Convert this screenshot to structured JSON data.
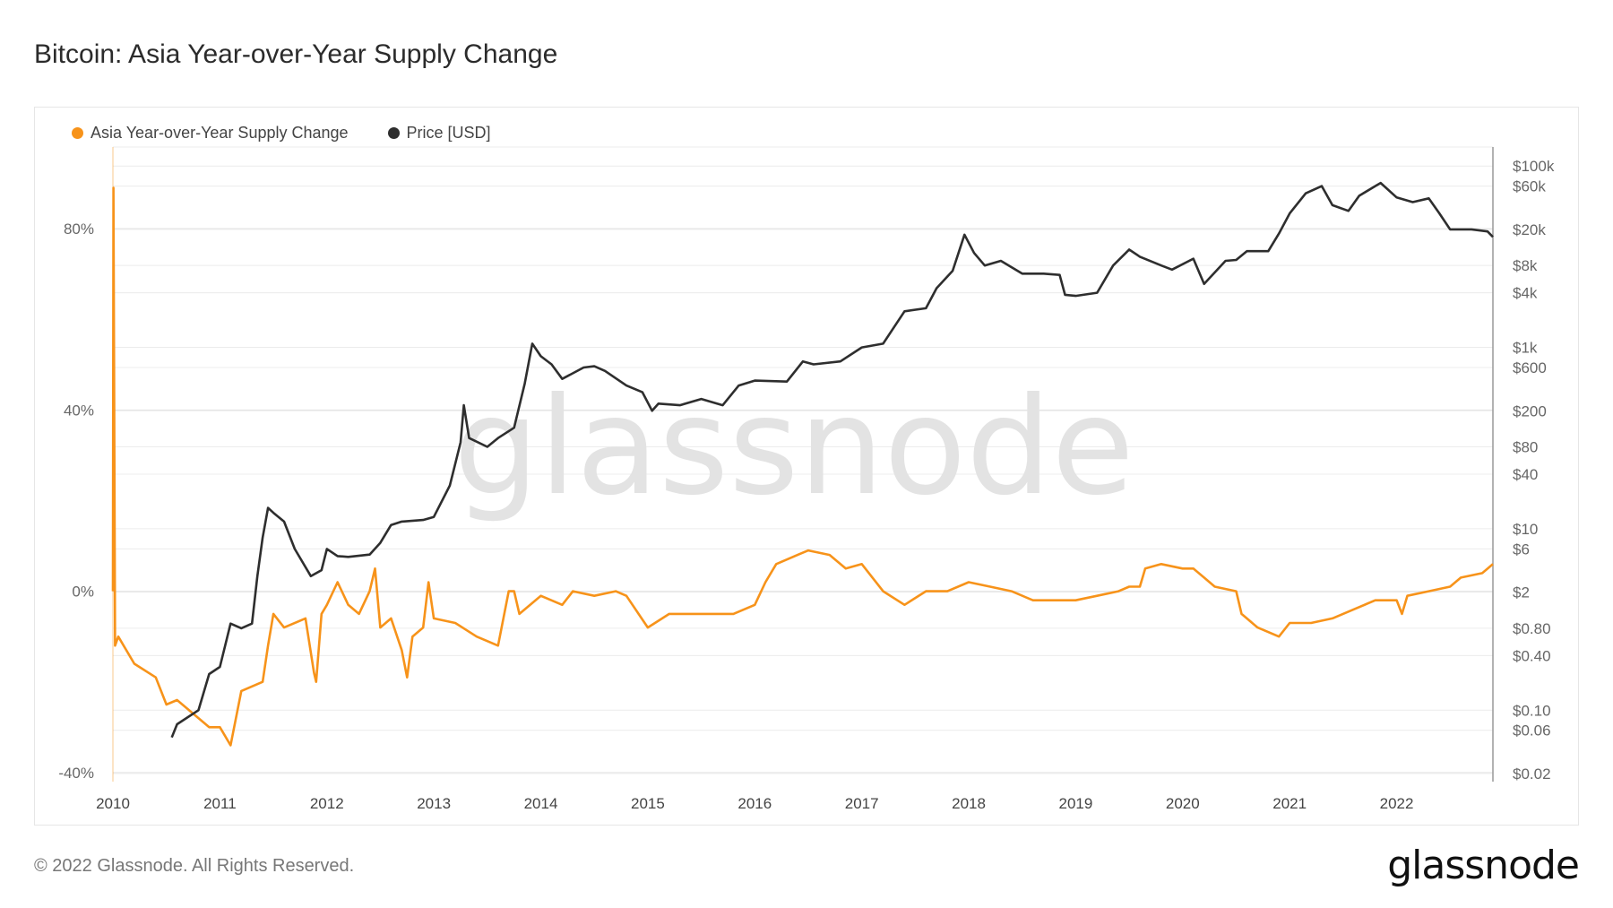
{
  "title": "Bitcoin: Asia Year-over-Year Supply Change",
  "footer": "© 2022 Glassnode. All Rights Reserved.",
  "logo": "glassnode",
  "watermark": "glassnode",
  "chart_data": {
    "type": "line",
    "title": "Bitcoin: Asia Year-over-Year Supply Change",
    "legend_position": "top-left",
    "grid": true,
    "x_ticks": [
      "2010",
      "2011",
      "2012",
      "2013",
      "2014",
      "2015",
      "2016",
      "2017",
      "2018",
      "2019",
      "2020",
      "2021",
      "2022"
    ],
    "xlim": [
      2010.0,
      2022.9
    ],
    "y_left": {
      "ticks": [
        "80%",
        "40%",
        "0%",
        "-40%"
      ],
      "tick_values": [
        80,
        40,
        0,
        -40
      ],
      "range": [
        -42,
        98
      ],
      "scale": "linear"
    },
    "y_right": {
      "ticks": [
        "$100k",
        "$60k",
        "$20k",
        "$8k",
        "$4k",
        "$1k",
        "$600",
        "$200",
        "$80",
        "$40",
        "$10",
        "$6",
        "$2",
        "$0.80",
        "$0.40",
        "$0.10",
        "$0.06",
        "$0.02"
      ],
      "tick_values": [
        100000,
        60000,
        20000,
        8000,
        4000,
        1000,
        600,
        200,
        80,
        40,
        10,
        6,
        2,
        0.8,
        0.4,
        0.1,
        0.06,
        0.02
      ],
      "range": [
        0.0163,
        162000
      ],
      "scale": "log"
    },
    "series": [
      {
        "name": "Asia Year-over-Year Supply Change",
        "axis": "left",
        "color": "#f7931a",
        "x": [
          2010.0,
          2010.005,
          2010.02,
          2010.05,
          2010.2,
          2010.4,
          2010.5,
          2010.6,
          2010.75,
          2010.9,
          2011.0,
          2011.1,
          2011.2,
          2011.4,
          2011.45,
          2011.5,
          2011.6,
          2011.8,
          2011.88,
          2011.9,
          2011.95,
          2012.0,
          2012.1,
          2012.2,
          2012.3,
          2012.4,
          2012.45,
          2012.5,
          2012.6,
          2012.7,
          2012.75,
          2012.8,
          2012.9,
          2012.95,
          2013.0,
          2013.2,
          2013.4,
          2013.6,
          2013.7,
          2013.75,
          2013.8,
          2014.0,
          2014.2,
          2014.3,
          2014.5,
          2014.7,
          2014.8,
          2015.0,
          2015.2,
          2015.5,
          2015.8,
          2016.0,
          2016.1,
          2016.2,
          2016.4,
          2016.5,
          2016.7,
          2016.85,
          2017.0,
          2017.2,
          2017.4,
          2017.6,
          2017.8,
          2018.0,
          2018.2,
          2018.4,
          2018.6,
          2018.8,
          2019.0,
          2019.2,
          2019.4,
          2019.5,
          2019.6,
          2019.65,
          2019.8,
          2020.0,
          2020.1,
          2020.2,
          2020.3,
          2020.5,
          2020.55,
          2020.7,
          2020.9,
          2021.0,
          2021.2,
          2021.4,
          2021.6,
          2021.8,
          2022.0,
          2022.05,
          2022.1,
          2022.3,
          2022.5,
          2022.6,
          2022.8,
          2022.9
        ],
        "y": [
          0,
          89,
          -12,
          -10,
          -16,
          -19,
          -25,
          -24,
          -27,
          -30,
          -30,
          -34,
          -22,
          -20,
          -12,
          -5,
          -8,
          -6,
          -18,
          -20,
          -5,
          -3,
          2,
          -3,
          -5,
          0,
          5,
          -8,
          -6,
          -13,
          -19,
          -10,
          -8,
          2,
          -6,
          -7,
          -10,
          -12,
          0,
          0,
          -5,
          -1,
          -3,
          0,
          -1,
          0,
          -1,
          -8,
          -5,
          -5,
          -5,
          -3,
          2,
          6,
          8,
          9,
          8,
          5,
          6,
          0,
          -3,
          0,
          0,
          2,
          1,
          0,
          -2,
          -2,
          -2,
          -1,
          0,
          1,
          1,
          5,
          6,
          5,
          5,
          3,
          1,
          0,
          -5,
          -8,
          -10,
          -7,
          -7,
          -6,
          -4,
          -2,
          -2,
          -5,
          -1,
          0,
          1,
          3,
          4,
          6
        ]
      },
      {
        "name": "Price [USD]",
        "axis": "right",
        "color": "#2e2e2e",
        "x": [
          2010.55,
          2010.6,
          2010.8,
          2010.9,
          2011.0,
          2011.1,
          2011.2,
          2011.3,
          2011.35,
          2011.4,
          2011.45,
          2011.5,
          2011.6,
          2011.7,
          2011.85,
          2011.95,
          2012.0,
          2012.1,
          2012.2,
          2012.4,
          2012.5,
          2012.6,
          2012.7,
          2012.9,
          2013.0,
          2013.15,
          2013.25,
          2013.28,
          2013.33,
          2013.5,
          2013.6,
          2013.75,
          2013.85,
          2013.92,
          2014.0,
          2014.1,
          2014.2,
          2014.4,
          2014.5,
          2014.6,
          2014.8,
          2014.95,
          2015.04,
          2015.1,
          2015.3,
          2015.5,
          2015.7,
          2015.85,
          2016.0,
          2016.3,
          2016.45,
          2016.55,
          2016.8,
          2017.0,
          2017.2,
          2017.4,
          2017.6,
          2017.7,
          2017.85,
          2017.96,
          2018.05,
          2018.15,
          2018.3,
          2018.5,
          2018.7,
          2018.85,
          2018.9,
          2019.0,
          2019.2,
          2019.35,
          2019.5,
          2019.6,
          2019.8,
          2019.9,
          2020.1,
          2020.2,
          2020.4,
          2020.5,
          2020.6,
          2020.8,
          2020.9,
          2021.0,
          2021.15,
          2021.3,
          2021.4,
          2021.55,
          2021.65,
          2021.8,
          2021.85,
          2022.0,
          2022.15,
          2022.3,
          2022.4,
          2022.5,
          2022.7,
          2022.85,
          2022.9
        ],
        "y": [
          0.05,
          0.07,
          0.1,
          0.25,
          0.3,
          0.9,
          0.8,
          0.9,
          3,
          8,
          17,
          15,
          12,
          6,
          3,
          3.5,
          6,
          5,
          4.9,
          5.2,
          7,
          11,
          12,
          12.5,
          13.5,
          30,
          90,
          230,
          100,
          80,
          100,
          130,
          400,
          1100,
          800,
          650,
          450,
          600,
          620,
          550,
          380,
          320,
          200,
          240,
          230,
          270,
          230,
          380,
          430,
          420,
          700,
          650,
          700,
          1000,
          1100,
          2500,
          2700,
          4500,
          7000,
          17500,
          11000,
          8000,
          9000,
          6500,
          6500,
          6300,
          3800,
          3700,
          4000,
          8000,
          12000,
          10000,
          8000,
          7200,
          9500,
          5000,
          9000,
          9200,
          11500,
          11500,
          18000,
          30000,
          50000,
          60000,
          37000,
          32000,
          47000,
          60000,
          65000,
          45000,
          40000,
          44000,
          30000,
          20000,
          20000,
          19000,
          16500
        ]
      }
    ]
  }
}
